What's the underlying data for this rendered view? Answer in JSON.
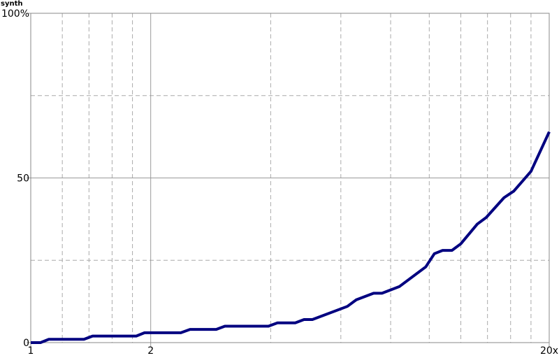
{
  "chart_data": {
    "type": "line",
    "title": "synth",
    "x": [
      1,
      1.058,
      1.11,
      1.36,
      1.43,
      1.84,
      1.93,
      2.38,
      2.51,
      2.92,
      3.07,
      3.95,
      4.16,
      4.61,
      4.85,
      5.09,
      6.23,
      6.56,
      7.25,
      7.61,
      8.41,
      9.8,
      10.3,
      10.8,
      11.4,
      12.0,
      13.2,
      13.9,
      15.4,
      16.3,
      18.0,
      20
    ],
    "series": [
      {
        "name": "synth",
        "color": "#000080",
        "values": [
          0,
          0,
          1,
          1,
          2,
          2,
          3,
          3,
          4,
          4,
          5,
          5,
          6,
          6,
          7,
          7,
          11,
          13,
          15,
          15,
          17,
          23,
          27,
          28,
          28,
          30,
          36,
          38,
          44,
          46,
          52,
          64
        ]
      }
    ],
    "xlim": [
      1,
      20
    ],
    "xlog": true,
    "xticks": [
      1,
      2,
      {
        "value": 20,
        "label": "20x"
      }
    ],
    "xminor": [
      1.2,
      1.4,
      1.6,
      1.8,
      4,
      6,
      8,
      10,
      12,
      14,
      16,
      18
    ],
    "ylim": [
      0,
      100
    ],
    "yticks": [
      0,
      50,
      {
        "value": 100,
        "label": "100%"
      }
    ],
    "yminor": [
      25,
      75
    ],
    "grid": true
  }
}
